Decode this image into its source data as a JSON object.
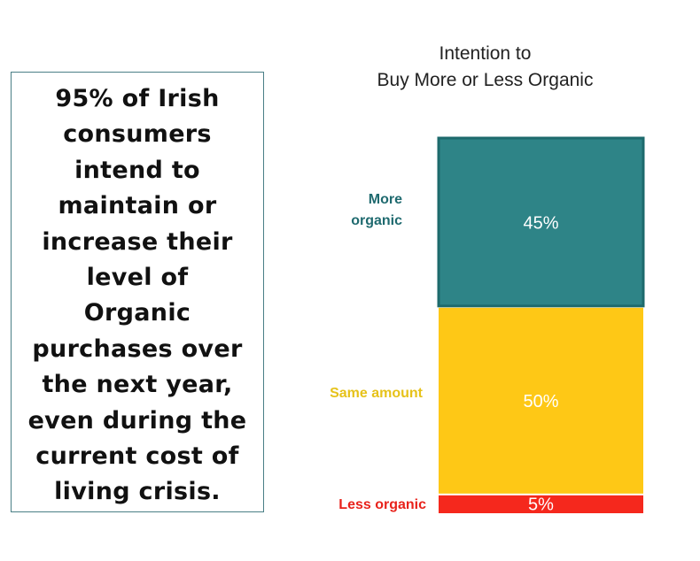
{
  "callout": {
    "lines": [
      "95% of Irish",
      "consumers",
      "intend to",
      "maintain or",
      "increase their",
      "level of",
      "Organic",
      "purchases over",
      "the next year,",
      "even during the",
      "current cost of",
      "living crisis."
    ]
  },
  "chart_data": {
    "type": "bar",
    "stacked": true,
    "title_lines": [
      "Intention to",
      "Buy More or Less Organic"
    ],
    "categories": [
      "More organic",
      "Same amount",
      "Less organic"
    ],
    "category_lines": [
      [
        "More",
        "organic"
      ],
      [
        "Same amount"
      ],
      [
        "Less organic"
      ]
    ],
    "values": [
      45,
      50,
      5
    ],
    "data_labels": [
      "45%",
      "50%",
      "5%"
    ],
    "colors": [
      "#2e8487",
      "#fec816",
      "#f5281d"
    ],
    "label_colors": [
      "#1f6a6f",
      "#e6c21a",
      "#e8221b"
    ],
    "ylim": [
      0,
      100
    ],
    "xlabel": "",
    "ylabel": ""
  }
}
